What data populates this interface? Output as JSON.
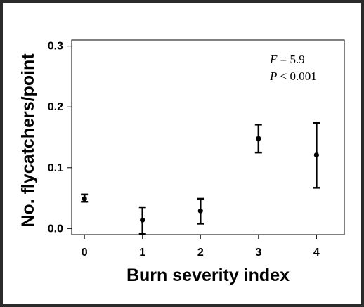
{
  "chart_data": {
    "type": "scatter",
    "xlabel": "Burn severity index",
    "ylabel": "No. flycatchers/point",
    "xlim": [
      -0.22,
      4.48
    ],
    "ylim": [
      -0.01,
      0.31
    ],
    "x_ticks": [
      "0",
      "1",
      "2",
      "3",
      "4"
    ],
    "y_ticks": [
      "0.0",
      "0.1",
      "0.2",
      "0.3"
    ],
    "points": [
      {
        "x": 0,
        "y": 0.049,
        "lower": 0.044,
        "upper": 0.056
      },
      {
        "x": 1,
        "y": 0.014,
        "lower": -0.008,
        "upper": 0.035
      },
      {
        "x": 2,
        "y": 0.029,
        "lower": 0.008,
        "upper": 0.049
      },
      {
        "x": 3,
        "y": 0.148,
        "lower": 0.125,
        "upper": 0.171
      },
      {
        "x": 4,
        "y": 0.121,
        "lower": 0.067,
        "upper": 0.174
      }
    ],
    "annotations": {
      "f_label": "F",
      "f_value": " = 5.9",
      "p_label": "P",
      "p_value": " < 0.001"
    },
    "grid": false,
    "legend": "none",
    "colors": {
      "marker": "#000000",
      "frame": "#2b2b2b"
    }
  }
}
